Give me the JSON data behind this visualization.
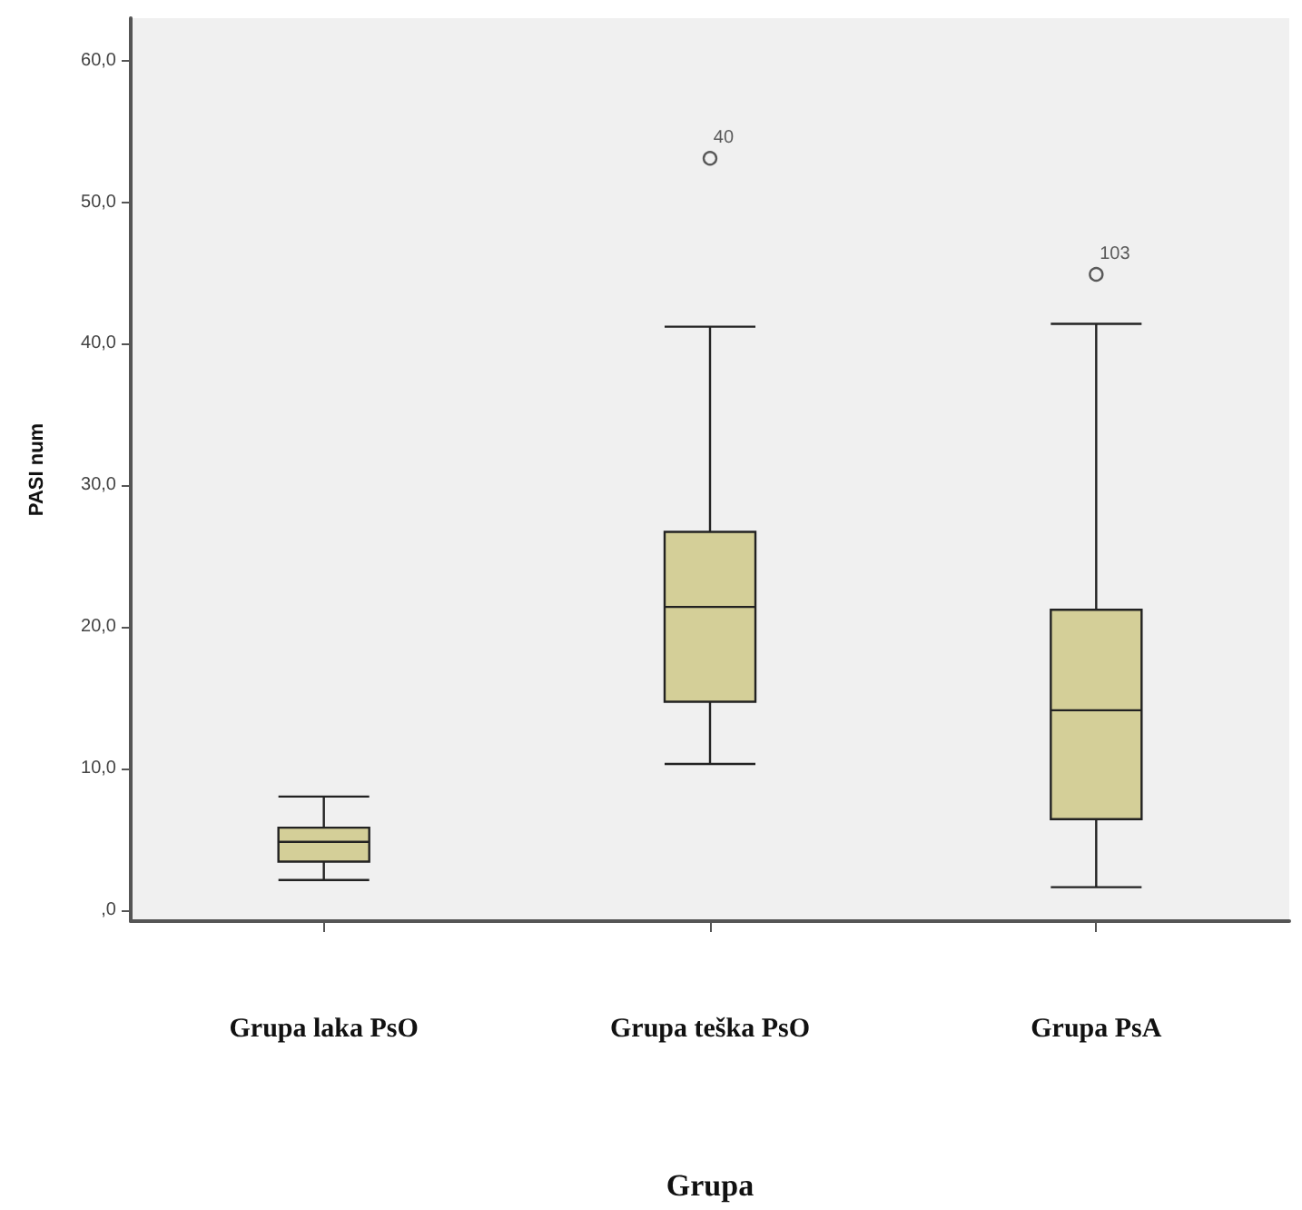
{
  "chart_data": {
    "type": "box",
    "categories": [
      "Grupa laka PsO",
      "Grupa teška PsO",
      "Grupa PsA"
    ],
    "series": [
      {
        "color": "#d4cf98",
        "boxes": [
          {
            "low": 2.1,
            "q1": 3.4,
            "median": 4.8,
            "q3": 5.8,
            "high": 8.0
          },
          {
            "low": 10.3,
            "q1": 14.7,
            "median": 21.4,
            "q3": 26.7,
            "high": 41.2,
            "outliers": [
              53.1
            ]
          },
          {
            "low": 1.6,
            "q1": 6.4,
            "median": 14.1,
            "q3": 21.2,
            "high": 41.4,
            "outliers": [
              44.9
            ]
          }
        ]
      }
    ],
    "xlabel": "Grupa",
    "ylabel": "PASI num",
    "ylim": [
      -0.8,
      63
    ],
    "yticks": [
      {
        "value": 0,
        "label": ",0"
      },
      {
        "value": 10,
        "label": "10,0"
      },
      {
        "value": 20,
        "label": "20,0"
      },
      {
        "value": 30,
        "label": "30,0"
      },
      {
        "value": 40,
        "label": "40,0"
      },
      {
        "value": 50,
        "label": "50,0"
      },
      {
        "value": 60,
        "label": "60,0"
      }
    ],
    "annotations": [
      "40",
      "103"
    ],
    "grid": false
  }
}
